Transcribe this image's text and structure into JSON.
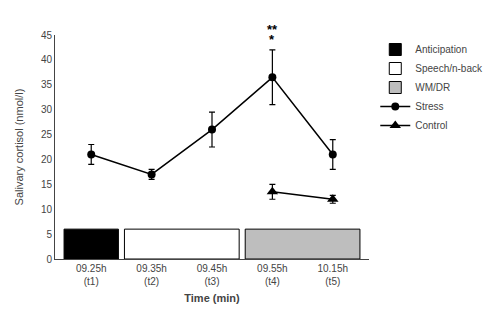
{
  "chart_data": {
    "type": "line",
    "categories": [
      "09.25h\n(t1)",
      "09.35h\n(t2)",
      "09.45h\n(t3)",
      "09.55h\n(t4)",
      "10.15h\n(t5)"
    ],
    "xlabel": "Time (min)",
    "ylabel": "Salivary cortisol (nmol/l)",
    "ylim": [
      0,
      45
    ],
    "yticks": [
      0,
      5,
      10,
      15,
      20,
      25,
      30,
      35,
      40,
      45
    ],
    "grid": false,
    "legend": "upper right",
    "series": [
      {
        "name": "Stress",
        "color": "black",
        "marker": "circle",
        "line_style": "solid",
        "values": [
          21.0,
          17.0,
          26.0,
          36.5,
          21.0
        ],
        "errors": [
          2.0,
          1.0,
          3.5,
          5.5,
          3.0
        ]
      },
      {
        "name": "Control",
        "color": "black",
        "marker": "triangle-up",
        "line_style": "solid",
        "values": [
          null,
          null,
          null,
          13.5,
          12.0
        ],
        "errors": [
          null,
          null,
          null,
          1.5,
          0.8
        ]
      }
    ],
    "phases": [
      {
        "name": "Anticipation",
        "color": "black",
        "categories": [
          "09.25h\n(t1)"
        ],
        "height": 6
      },
      {
        "name": "Speech/n-back",
        "color": "white",
        "categories": [
          "09.35h\n(t2)",
          "09.45h\n(t3)"
        ],
        "height": 6
      },
      {
        "name": "WM/DR",
        "color": "#bebebe",
        "categories": [
          "09.55h\n(t4)",
          "10.15h\n(t5)"
        ],
        "height": 6
      }
    ],
    "annotations": [
      {
        "text": "**",
        "category": "09.55h\n(t4)"
      },
      {
        "text": "*",
        "category": "09.55h\n(t4)"
      }
    ]
  }
}
